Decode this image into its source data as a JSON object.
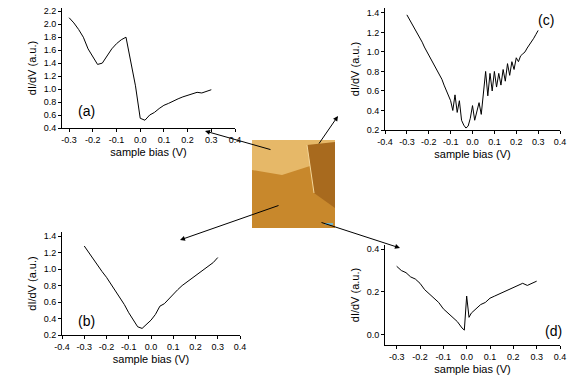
{
  "chart_data": [
    {
      "type": "line",
      "panel_label": "(a)",
      "color": "#000000",
      "x_label": "sample bias (V)",
      "y_label": "dI/dV (a.u.)",
      "x": [
        -0.3,
        -0.28,
        -0.26,
        -0.24,
        -0.22,
        -0.2,
        -0.18,
        -0.16,
        -0.14,
        -0.12,
        -0.1,
        -0.08,
        -0.06,
        -0.04,
        -0.02,
        0.0,
        0.02,
        0.04,
        0.06,
        0.08,
        0.1,
        0.12,
        0.14,
        0.16,
        0.18,
        0.2,
        0.22,
        0.24,
        0.26,
        0.28,
        0.3
      ],
      "values": [
        2.1,
        2.02,
        1.92,
        1.8,
        1.62,
        1.5,
        1.38,
        1.4,
        1.52,
        1.62,
        1.7,
        1.76,
        1.8,
        1.45,
        1.05,
        0.55,
        0.52,
        0.6,
        0.64,
        0.7,
        0.75,
        0.78,
        0.82,
        0.85,
        0.88,
        0.9,
        0.92,
        0.95,
        0.94,
        0.97,
        0.99
      ],
      "xlim": [
        -0.33,
        0.4
      ],
      "ylim": [
        0.4,
        2.25
      ],
      "xticks": [
        -0.3,
        -0.2,
        -0.1,
        {
          "value": 0,
          "label": "0.0"
        },
        0.1,
        0.2,
        0.3,
        0.4
      ],
      "yticks": [
        0.4,
        0.6,
        0.8,
        {
          "value": 1,
          "label": "1.0"
        },
        1.2,
        1.4,
        1.6,
        1.8,
        {
          "value": 2,
          "label": "2.0"
        },
        2.2
      ],
      "grid": false
    },
    {
      "type": "line",
      "panel_label": "(b)",
      "color": "#000000",
      "x_label": "sample bias (V)",
      "y_label": "dI/dV (a.u.)",
      "x": [
        -0.3,
        -0.28,
        -0.26,
        -0.24,
        -0.22,
        -0.2,
        -0.18,
        -0.16,
        -0.14,
        -0.12,
        -0.1,
        -0.08,
        -0.06,
        -0.04,
        -0.02,
        0.0,
        0.02,
        0.04,
        0.06,
        0.08,
        0.1,
        0.12,
        0.14,
        0.16,
        0.18,
        0.2,
        0.22,
        0.24,
        0.26,
        0.28,
        0.3
      ],
      "values": [
        1.28,
        1.2,
        1.12,
        1.04,
        0.97,
        0.9,
        0.82,
        0.74,
        0.66,
        0.57,
        0.47,
        0.38,
        0.3,
        0.28,
        0.33,
        0.38,
        0.45,
        0.55,
        0.58,
        0.64,
        0.7,
        0.75,
        0.8,
        0.84,
        0.88,
        0.93,
        0.97,
        1.0,
        1.04,
        1.08,
        1.14
      ],
      "xlim": [
        -0.4,
        0.4
      ],
      "ylim": [
        0.2,
        1.45
      ],
      "xticks": [
        -0.4,
        -0.3,
        -0.2,
        -0.1,
        {
          "value": 0,
          "label": "0.0"
        },
        0.1,
        0.2,
        0.3,
        0.4
      ],
      "yticks": [
        0.2,
        0.4,
        0.6,
        0.8,
        {
          "value": 1,
          "label": "1.0"
        },
        1.2,
        1.4
      ],
      "grid": false
    },
    {
      "type": "line",
      "panel_label": "(c)",
      "color": "#000000",
      "x_label": "sample bias (V)",
      "y_label": "dI/dV (a.u.)",
      "x": [
        -0.3,
        -0.29,
        -0.28,
        -0.27,
        -0.26,
        -0.25,
        -0.24,
        -0.23,
        -0.22,
        -0.21,
        -0.2,
        -0.19,
        -0.18,
        -0.17,
        -0.16,
        -0.15,
        -0.14,
        -0.13,
        -0.12,
        -0.11,
        -0.1,
        -0.09,
        -0.08,
        -0.07,
        -0.06,
        -0.05,
        -0.04,
        -0.03,
        -0.02,
        -0.01,
        0.0,
        0.01,
        0.02,
        0.03,
        0.04,
        0.05,
        0.06,
        0.07,
        0.08,
        0.09,
        0.1,
        0.11,
        0.12,
        0.13,
        0.14,
        0.15,
        0.16,
        0.17,
        0.18,
        0.19,
        0.2,
        0.21,
        0.22,
        0.23,
        0.24,
        0.25,
        0.26,
        0.27,
        0.28,
        0.29,
        0.3
      ],
      "values": [
        1.38,
        1.34,
        1.31,
        1.27,
        1.22,
        1.18,
        1.14,
        1.1,
        1.05,
        1.01,
        0.97,
        0.93,
        0.88,
        0.84,
        0.8,
        0.76,
        0.72,
        0.66,
        0.6,
        0.54,
        0.5,
        0.4,
        0.56,
        0.38,
        0.5,
        0.3,
        0.25,
        0.22,
        0.24,
        0.32,
        0.45,
        0.3,
        0.4,
        0.48,
        0.36,
        0.6,
        0.8,
        0.55,
        0.78,
        0.6,
        0.8,
        0.64,
        0.78,
        0.66,
        0.82,
        0.7,
        0.88,
        0.76,
        0.9,
        0.82,
        0.94,
        0.9,
        0.96,
        0.98,
        1.0,
        1.04,
        1.07,
        1.1,
        1.14,
        1.18,
        1.22
      ],
      "xlim": [
        -0.4,
        0.4
      ],
      "ylim": [
        0.2,
        1.45
      ],
      "xticks": [
        -0.4,
        -0.3,
        -0.2,
        -0.1,
        {
          "value": 0,
          "label": "0.0"
        },
        0.1,
        0.2,
        0.3,
        0.4
      ],
      "yticks": [
        0.2,
        0.4,
        0.6,
        0.8,
        {
          "value": 1,
          "label": "1.0"
        },
        1.2,
        1.4
      ],
      "grid": false
    },
    {
      "type": "line",
      "panel_label": "(d)",
      "color": "#000000",
      "x_label": "sample bias (V)",
      "y_label": "dI/dV (a.u.)",
      "x": [
        -0.3,
        -0.28,
        -0.26,
        -0.24,
        -0.22,
        -0.2,
        -0.18,
        -0.16,
        -0.14,
        -0.12,
        -0.1,
        -0.08,
        -0.06,
        -0.04,
        -0.02,
        -0.01,
        0.0,
        0.01,
        0.02,
        0.04,
        0.06,
        0.08,
        0.1,
        0.12,
        0.14,
        0.16,
        0.18,
        0.2,
        0.22,
        0.24,
        0.26,
        0.28,
        0.3
      ],
      "values": [
        0.32,
        0.3,
        0.29,
        0.27,
        0.26,
        0.24,
        0.21,
        0.19,
        0.17,
        0.15,
        0.12,
        0.1,
        0.08,
        0.06,
        0.03,
        0.02,
        0.18,
        0.08,
        0.1,
        0.12,
        0.14,
        0.15,
        0.17,
        0.18,
        0.19,
        0.2,
        0.21,
        0.22,
        0.23,
        0.24,
        0.23,
        0.24,
        0.25
      ],
      "xlim": [
        -0.35,
        0.4
      ],
      "ylim": [
        -0.05,
        0.42
      ],
      "xticks": [
        -0.3,
        -0.2,
        -0.1,
        {
          "value": 0,
          "label": "0.0"
        },
        0.1,
        0.2,
        0.3,
        0.4
      ],
      "yticks": [
        {
          "value": 0,
          "label": "0.0"
        },
        0.2,
        0.4
      ],
      "grid": false
    }
  ]
}
